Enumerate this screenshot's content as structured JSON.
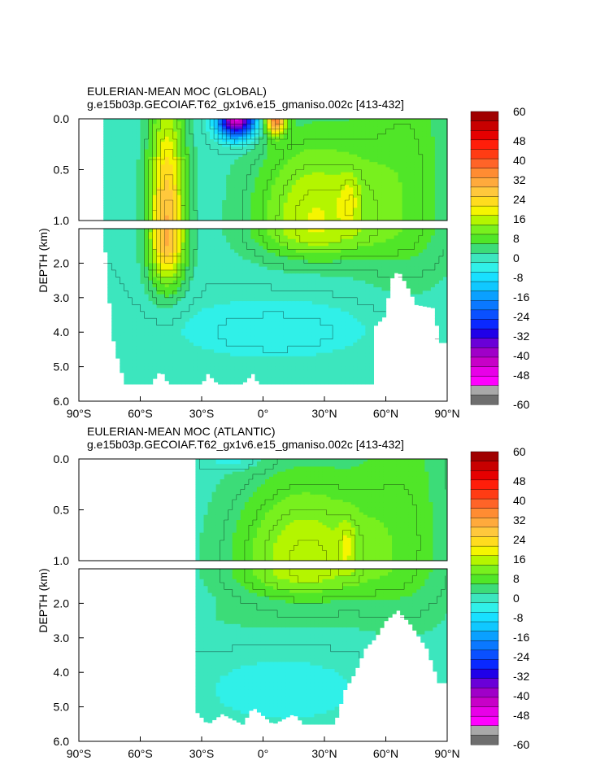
{
  "panels": [
    {
      "title": "EULERIAN-MEAN MOC (GLOBAL)",
      "subtitle": "g.e15b03p.GECOIAF.T62_gx1v6.e15_gmaniso.002c [413-432]"
    },
    {
      "title": "EULERIAN-MEAN MOC (ATLANTIC)",
      "subtitle": "g.e15b03p.GECOIAF.T62_gx1v6.e15_gmaniso.002c [413-432]"
    }
  ],
  "colors": {
    "background": "#ffffff",
    "land": "#ffffff",
    "contour_line": "#000000"
  },
  "chart_data": [
    {
      "type": "heatmap",
      "title": "EULERIAN-MEAN MOC (GLOBAL)",
      "subtitle": "g.e15b03p.GECOIAF.T62_gx1v6.e15_gmaniso.002c [413-432]",
      "xlabel": "",
      "ylabel": "DEPTH (km)",
      "x_ticks": [
        "90°S",
        "60°S",
        "30°S",
        "0°",
        "30°N",
        "60°N",
        "90°N"
      ],
      "x_tick_values": [
        -90,
        -60,
        -30,
        0,
        30,
        60,
        90
      ],
      "upper_y_ticks": [
        "0.0",
        "0.5",
        "1.0"
      ],
      "upper_y_tick_values": [
        0,
        0.5,
        1.0
      ],
      "lower_y_ticks": [
        "2.0",
        "3.0",
        "4.0",
        "5.0",
        "6.0"
      ],
      "lower_y_tick_values": [
        2,
        3,
        4,
        5,
        6
      ],
      "xlim": [
        -90,
        90
      ],
      "ylim_upper": [
        0,
        1.0
      ],
      "ylim_lower": [
        1.0,
        6.0
      ],
      "grid": false,
      "colorbar": {
        "levels": [
          -60,
          -56,
          -52,
          -48,
          -44,
          -40,
          -36,
          -32,
          -28,
          -24,
          -20,
          -16,
          -12,
          -8,
          -4,
          0,
          4,
          8,
          12,
          16,
          20,
          24,
          28,
          32,
          36,
          40,
          44,
          48,
          52,
          56,
          60
        ],
        "labels": [
          "60",
          "48",
          "40",
          "32",
          "24",
          "16",
          "8",
          "0",
          "-8",
          "-16",
          "-24",
          "-32",
          "-40",
          "-48",
          "-60"
        ],
        "placement": "right"
      },
      "domain": {
        "lat_min": -78,
        "lat_max": 90
      },
      "bottom_profile": [
        [
          -78,
          1.05
        ],
        [
          -76,
          2.3
        ],
        [
          -74,
          4.0
        ],
        [
          -70,
          5.0
        ],
        [
          -67,
          5.5
        ],
        [
          -55,
          5.5
        ],
        [
          -50,
          5.1
        ],
        [
          -46,
          5.5
        ],
        [
          -30,
          5.5
        ],
        [
          -27,
          5.2
        ],
        [
          -22,
          5.5
        ],
        [
          -10,
          5.5
        ],
        [
          -5,
          5.2
        ],
        [
          -2,
          5.5
        ],
        [
          54,
          5.5
        ],
        [
          55,
          3.8
        ],
        [
          60,
          3.5
        ],
        [
          62,
          2.5
        ],
        [
          66,
          2.2
        ],
        [
          70,
          2.6
        ],
        [
          75,
          3.2
        ],
        [
          84,
          3.3
        ],
        [
          86,
          4.3
        ],
        [
          90,
          4.3
        ]
      ],
      "cells": [
        {
          "lat": [
            -60,
            -35
          ],
          "depth": [
            0,
            3.3
          ],
          "value": 30
        },
        {
          "lat": [
            -25,
            0
          ],
          "depth": [
            0,
            0.35
          ],
          "value": -44
        },
        {
          "lat": [
            0,
            10
          ],
          "depth": [
            0,
            0.3
          ],
          "value": 32
        },
        {
          "lat": [
            0,
            55
          ],
          "depth": [
            0.1,
            1.8
          ],
          "value": 18
        },
        {
          "lat": [
            35,
            48
          ],
          "depth": [
            0.5,
            1.1
          ],
          "value": 22
        },
        {
          "lat": [
            -30,
            55
          ],
          "depth": [
            3.3,
            4.6
          ],
          "value": -4
        }
      ]
    },
    {
      "type": "heatmap",
      "title": "EULERIAN-MEAN MOC (ATLANTIC)",
      "subtitle": "g.e15b03p.GECOIAF.T62_gx1v6.e15_gmaniso.002c [413-432]",
      "xlabel": "",
      "ylabel": "DEPTH (km)",
      "x_ticks": [
        "90°S",
        "60°S",
        "30°S",
        "0°",
        "30°N",
        "60°N",
        "90°N"
      ],
      "x_tick_values": [
        -90,
        -60,
        -30,
        0,
        30,
        60,
        90
      ],
      "upper_y_ticks": [
        "0.0",
        "0.5",
        "1.0"
      ],
      "upper_y_tick_values": [
        0,
        0.5,
        1.0
      ],
      "lower_y_ticks": [
        "2.0",
        "3.0",
        "4.0",
        "5.0",
        "6.0"
      ],
      "lower_y_tick_values": [
        2,
        3,
        4,
        5,
        6
      ],
      "xlim": [
        -90,
        90
      ],
      "ylim_upper": [
        0,
        1.0
      ],
      "ylim_lower": [
        1.0,
        6.0
      ],
      "grid": false,
      "colorbar": {
        "levels": [
          -60,
          -56,
          -52,
          -48,
          -44,
          -40,
          -36,
          -32,
          -28,
          -24,
          -20,
          -16,
          -12,
          -8,
          -4,
          0,
          4,
          8,
          12,
          16,
          20,
          24,
          28,
          32,
          36,
          40,
          44,
          48,
          52,
          56,
          60
        ],
        "labels": [
          "60",
          "48",
          "40",
          "32",
          "24",
          "16",
          "8",
          "0",
          "-8",
          "-16",
          "-24",
          "-32",
          "-40",
          "-48",
          "-60"
        ],
        "placement": "right"
      },
      "domain": {
        "lat_min": -33,
        "lat_max": 90
      },
      "bottom_profile": [
        [
          -33,
          5.1
        ],
        [
          -27,
          5.5
        ],
        [
          -20,
          5.2
        ],
        [
          -10,
          5.5
        ],
        [
          -5,
          5.0
        ],
        [
          5,
          5.5
        ],
        [
          15,
          5.2
        ],
        [
          20,
          5.5
        ],
        [
          35,
          5.5
        ],
        [
          40,
          4.5
        ],
        [
          45,
          4.0
        ],
        [
          50,
          3.3
        ],
        [
          55,
          3.0
        ],
        [
          60,
          2.5
        ],
        [
          66,
          2.2
        ],
        [
          72,
          2.6
        ],
        [
          80,
          3.3
        ],
        [
          86,
          4.3
        ],
        [
          90,
          4.3
        ]
      ],
      "cells": [
        {
          "lat": [
            -33,
            0
          ],
          "depth": [
            0,
            0.1
          ],
          "value": 4
        },
        {
          "lat": [
            -33,
            60
          ],
          "depth": [
            0.3,
            1.7
          ],
          "value": 16
        },
        {
          "lat": [
            30,
            45
          ],
          "depth": [
            0.6,
            1.1
          ],
          "value": 22
        },
        {
          "lat": [
            -33,
            55
          ],
          "depth": [
            3.2,
            5.5
          ],
          "value": -2
        }
      ]
    }
  ]
}
